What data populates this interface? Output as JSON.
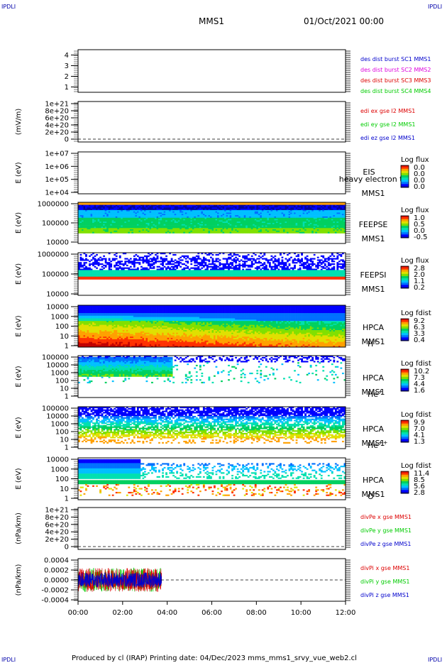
{
  "corner_label": "IPDLI",
  "header": {
    "spacecraft": "MMS1",
    "datetime": "01/Oct/2021 00:00"
  },
  "footer": {
    "text": "Produced by cl (IRAP)    Printing date: 04/Dec/2023    mms_mms1_srvy_vue_web2.cl"
  },
  "colors": {
    "spectro_cmap": [
      "#0000a0",
      "#0000ff",
      "#0070ff",
      "#00c0ff",
      "#00e0b0",
      "#00d060",
      "#80e000",
      "#e0e000",
      "#ffa000",
      "#ff3000",
      "#c00000"
    ],
    "series": {
      "red": "#dd0000",
      "green": "#00cc00",
      "blue": "#0000cc",
      "magenta": "#dd00dd"
    }
  },
  "chart_data": [
    {
      "type": "line",
      "panel": "des-dist-burst",
      "ylim": [
        0.5,
        4.5
      ],
      "yticks": [
        "1",
        "2",
        "3",
        "4"
      ],
      "ylabel": "",
      "series": [
        {
          "name": "des dist burst SC1 MMS1",
          "color": "#0000cc"
        },
        {
          "name": "des dist burst SC2 MMS2",
          "color": "#dd00dd"
        },
        {
          "name": "des dist burst SC3 MMS3",
          "color": "#dd0000"
        },
        {
          "name": "des dist burst SC4 MMS4",
          "color": "#00cc00"
        }
      ]
    },
    {
      "type": "line",
      "panel": "edi-e-field",
      "ylim": [
        0,
        1.1e+21
      ],
      "yticks": [
        "1e+21",
        "8e+20",
        "6e+20",
        "4e+20",
        "2e+20",
        "0"
      ],
      "ylabel": "(mV/m)",
      "series": [
        {
          "name": "edi ex gse l2 MMS1",
          "color": "#dd0000"
        },
        {
          "name": "edi ey gse l2 MMS1",
          "color": "#00cc00"
        },
        {
          "name": "edi ez gse l2 MMS1",
          "color": "#0000cc"
        }
      ]
    },
    {
      "type": "heatmap",
      "panel": "eis",
      "ylabel": "E (eV)",
      "yscale": "log",
      "yticks": [
        "1e+07",
        "1e+06",
        "1e+05",
        "1e+04"
      ],
      "labels": [
        "EIS",
        "MMS1"
      ],
      "overlay_text": "heavy electron to",
      "colorbar_title": "Log flux",
      "colorbar_ticks": [
        "0.0",
        "0.0",
        "0.0",
        "0.0"
      ],
      "data": "none"
    },
    {
      "type": "heatmap",
      "panel": "feepse",
      "ylabel": "E (eV)",
      "yscale": "log",
      "yticks": [
        "1000000",
        "100000",
        "10000"
      ],
      "labels": [
        "FEEPSE",
        "MMS1"
      ],
      "colorbar_title": "Log flux",
      "colorbar_ticks": [
        "1.0",
        "0.5",
        "0.0",
        "-0.5"
      ]
    },
    {
      "type": "heatmap",
      "panel": "feepsi",
      "ylabel": "E (eV)",
      "yscale": "log",
      "yticks": [
        "1000000",
        "100000",
        "10000"
      ],
      "labels": [
        "FEEPSI",
        "MMS1"
      ],
      "colorbar_title": "Log flux",
      "colorbar_ticks": [
        "2.8",
        "2.0",
        "1.1",
        "0.2"
      ]
    },
    {
      "type": "heatmap",
      "panel": "hpca-h",
      "ylabel": "E (eV)",
      "yscale": "log",
      "yticks": [
        "10000",
        "1000",
        "100",
        "10",
        "1"
      ],
      "labels": [
        "HPCA",
        "MMS1"
      ],
      "species": "H",
      "species_sup": "+",
      "colorbar_title": "Log fdist",
      "colorbar_ticks": [
        "9.2",
        "6.3",
        "3.3",
        "0.4"
      ]
    },
    {
      "type": "heatmap",
      "panel": "hpca-he",
      "ylabel": "E (eV)",
      "yscale": "log",
      "yticks": [
        "100000",
        "10000",
        "1000",
        "100",
        "10",
        "1"
      ],
      "labels": [
        "HPCA",
        "MMS1"
      ],
      "species": "He",
      "species_sup": "+",
      "colorbar_title": "Log fdist",
      "colorbar_ticks": [
        "10.2",
        "7.3",
        "4.4",
        "1.6"
      ]
    },
    {
      "type": "heatmap",
      "panel": "hpca-hepp",
      "ylabel": "E (eV)",
      "yscale": "log",
      "yticks": [
        "100000",
        "10000",
        "1000",
        "100",
        "10",
        "1"
      ],
      "labels": [
        "HPCA",
        "MMS1"
      ],
      "species": "He",
      "species_sup": "++",
      "colorbar_title": "Log fdist",
      "colorbar_ticks": [
        "9.9",
        "7.0",
        "4.1",
        "1.3"
      ]
    },
    {
      "type": "heatmap",
      "panel": "hpca-o",
      "ylabel": "E (eV)",
      "yscale": "log",
      "yticks": [
        "10000",
        "1000",
        "100",
        "10",
        "1"
      ],
      "labels": [
        "HPCA",
        "MMS1"
      ],
      "species": "O",
      "species_sup": "+",
      "colorbar_title": "Log fdist",
      "colorbar_ticks": [
        "11.4",
        "8.5",
        "5.6",
        "2.8"
      ]
    },
    {
      "type": "line",
      "panel": "divpe",
      "ylim": [
        0,
        1.1e+21
      ],
      "yticks": [
        "1e+21",
        "8e+20",
        "6e+20",
        "4e+20",
        "2e+20",
        "0"
      ],
      "ylabel": "(nPa/km)",
      "series": [
        {
          "name": "divPe x gse MMS1",
          "color": "#dd0000"
        },
        {
          "name": "divPe y gse MMS1",
          "color": "#00cc00"
        },
        {
          "name": "divPe z gse MMS1",
          "color": "#0000cc"
        }
      ]
    },
    {
      "type": "line",
      "panel": "divpi",
      "ylim": [
        -0.0005,
        0.0005
      ],
      "yticks": [
        "0.0004",
        "0.0002",
        "0.0000",
        "-0.0002",
        "-0.0004"
      ],
      "ylabel": "(nPa/km)",
      "data_x_end": "03:45",
      "series": [
        {
          "name": "divPi x gse MMS1",
          "color": "#dd0000"
        },
        {
          "name": "divPi y gse MMS1",
          "color": "#00cc00"
        },
        {
          "name": "divPi z gse MMS1",
          "color": "#0000cc"
        }
      ]
    }
  ],
  "x_axis": {
    "ticks": [
      "00:00",
      "02:00",
      "04:00",
      "06:00",
      "08:00",
      "10:00",
      "12:00"
    ]
  }
}
